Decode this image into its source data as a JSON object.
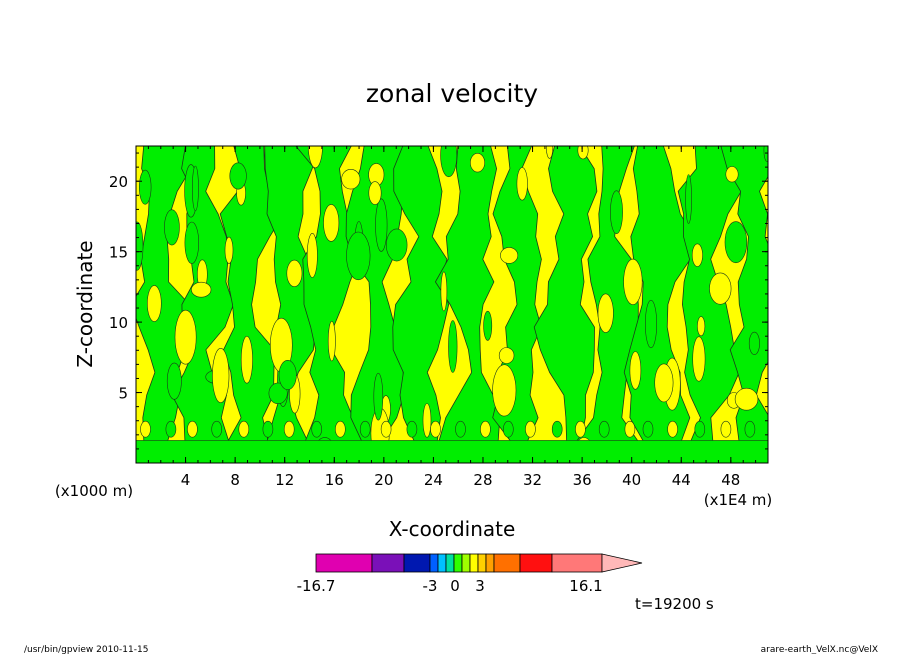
{
  "chart_data": {
    "type": "heatmap",
    "title": "zonal velocity",
    "xlabel": "X-coordinate",
    "ylabel": "Z-coordinate",
    "x_unit": "(x1E4 m)",
    "y_unit": "(x1000 m)",
    "xlim": [
      0,
      51
    ],
    "ylim": [
      0,
      22.5
    ],
    "xticks": [
      "4",
      "8",
      "12",
      "16",
      "20",
      "24",
      "28",
      "32",
      "36",
      "40",
      "44",
      "48"
    ],
    "yticks": [
      "5",
      "10",
      "15",
      "20"
    ],
    "field_pattern": "alternating yellow (0 to 3) and green (-3 to 0) vertical contour bands",
    "colorbar": {
      "colors": [
        "#e000b0",
        "#7a10b8",
        "#0018b0",
        "#0060ff",
        "#00c0ff",
        "#00e0a0",
        "#30ff00",
        "#a0ff00",
        "#ffff00",
        "#ffd000",
        "#ffa000",
        "#ff7000",
        "#ff1010",
        "#ff7878",
        "#ffb8b8"
      ],
      "tick_labels": [
        "-16.7",
        "-3",
        "0",
        "3",
        "16.1"
      ]
    },
    "bands": [
      {
        "x": 0.5,
        "color": "yellow"
      },
      {
        "x": 2.0,
        "color": "green"
      },
      {
        "x": 3.5,
        "color": "yellow"
      },
      {
        "x": 5.5,
        "color": "green"
      },
      {
        "x": 7.5,
        "color": "yellow"
      },
      {
        "x": 9.0,
        "color": "green"
      },
      {
        "x": 11.0,
        "color": "yellow"
      },
      {
        "x": 12.5,
        "color": "green"
      },
      {
        "x": 14.0,
        "color": "yellow"
      },
      {
        "x": 15.5,
        "color": "green"
      },
      {
        "x": 17.5,
        "color": "yellow"
      },
      {
        "x": 19.5,
        "color": "green"
      },
      {
        "x": 21.5,
        "color": "yellow"
      },
      {
        "x": 23.0,
        "color": "green"
      },
      {
        "x": 25.0,
        "color": "yellow"
      },
      {
        "x": 27.0,
        "color": "green"
      },
      {
        "x": 29.0,
        "color": "yellow"
      },
      {
        "x": 31.0,
        "color": "green"
      },
      {
        "x": 33.0,
        "color": "yellow"
      },
      {
        "x": 35.0,
        "color": "green"
      },
      {
        "x": 36.5,
        "color": "yellow"
      },
      {
        "x": 38.5,
        "color": "green"
      },
      {
        "x": 40.0,
        "color": "yellow"
      },
      {
        "x": 42.0,
        "color": "green"
      },
      {
        "x": 44.0,
        "color": "yellow"
      },
      {
        "x": 46.0,
        "color": "green"
      },
      {
        "x": 48.0,
        "color": "yellow"
      },
      {
        "x": 50.0,
        "color": "green"
      }
    ]
  },
  "annotations": {
    "time": "t=19200 s",
    "footer_left": "/usr/bin/gpview  2010-11-15",
    "footer_right": "arare-earth_VelX.nc@VelX"
  }
}
